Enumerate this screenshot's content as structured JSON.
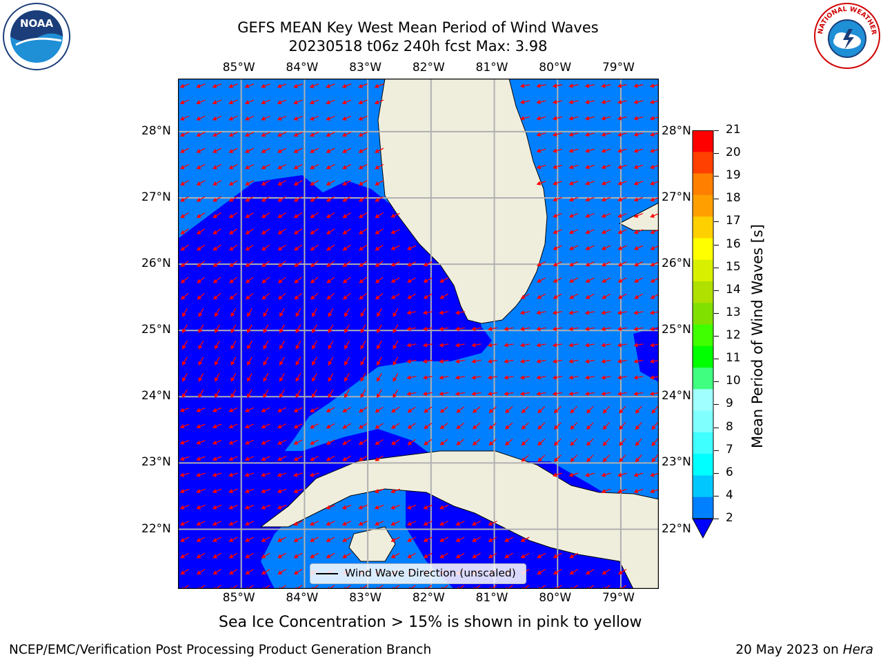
{
  "title": {
    "line1": "GEFS MEAN Key West Mean Period of Wind Waves",
    "line2": "20230518 t06z 240h fcst   Max: 3.98"
  },
  "logos": {
    "left": {
      "name": "noaa-logo",
      "text": "NOAA"
    },
    "right": {
      "name": "nws-logo",
      "text": "NATIONAL WEATHER SERVICE"
    }
  },
  "map": {
    "lon_labels": [
      "85°W",
      "84°W",
      "83°W",
      "82°W",
      "81°W",
      "80°W",
      "79°W"
    ],
    "lat_labels": [
      "28°N",
      "27°N",
      "26°N",
      "25°N",
      "24°N",
      "23°N",
      "22°N"
    ],
    "lon_range": [
      -86.0,
      -78.4
    ],
    "lat_range": [
      21.1,
      28.8
    ],
    "colors": {
      "land": "#efeedd",
      "band_2_4": "#0080ff",
      "below_2": "#0000ff",
      "gridlines": "#b0b0b0",
      "arrows": "#ff0000",
      "coastline": "#000000"
    },
    "legend_label": "Wind Wave Direction (unscaled)"
  },
  "colorbar": {
    "title": "Mean Period of Wind Waves [s]",
    "ticks": [
      "2",
      "4",
      "6",
      "7",
      "8",
      "9",
      "10",
      "11",
      "12",
      "13",
      "14",
      "15",
      "16",
      "17",
      "18",
      "19",
      "20",
      "21"
    ],
    "colors": [
      "#0080ff",
      "#00c8ff",
      "#00ffff",
      "#40ffff",
      "#80ffff",
      "#a0ffff",
      "#40ff80",
      "#00ff00",
      "#40ff00",
      "#80e000",
      "#b0e000",
      "#d8f000",
      "#ffff00",
      "#ffd000",
      "#ffa000",
      "#ff8000",
      "#ff4000",
      "#ff0000"
    ],
    "extend_color": "#0000ff"
  },
  "note": "Sea Ice Concentration > 15% is shown in pink to yellow",
  "footer": {
    "left": "NCEP/EMC/Verification Post Processing Product Generation Branch",
    "right_prefix": "20 May 2023 on ",
    "right_host": "Hera"
  }
}
